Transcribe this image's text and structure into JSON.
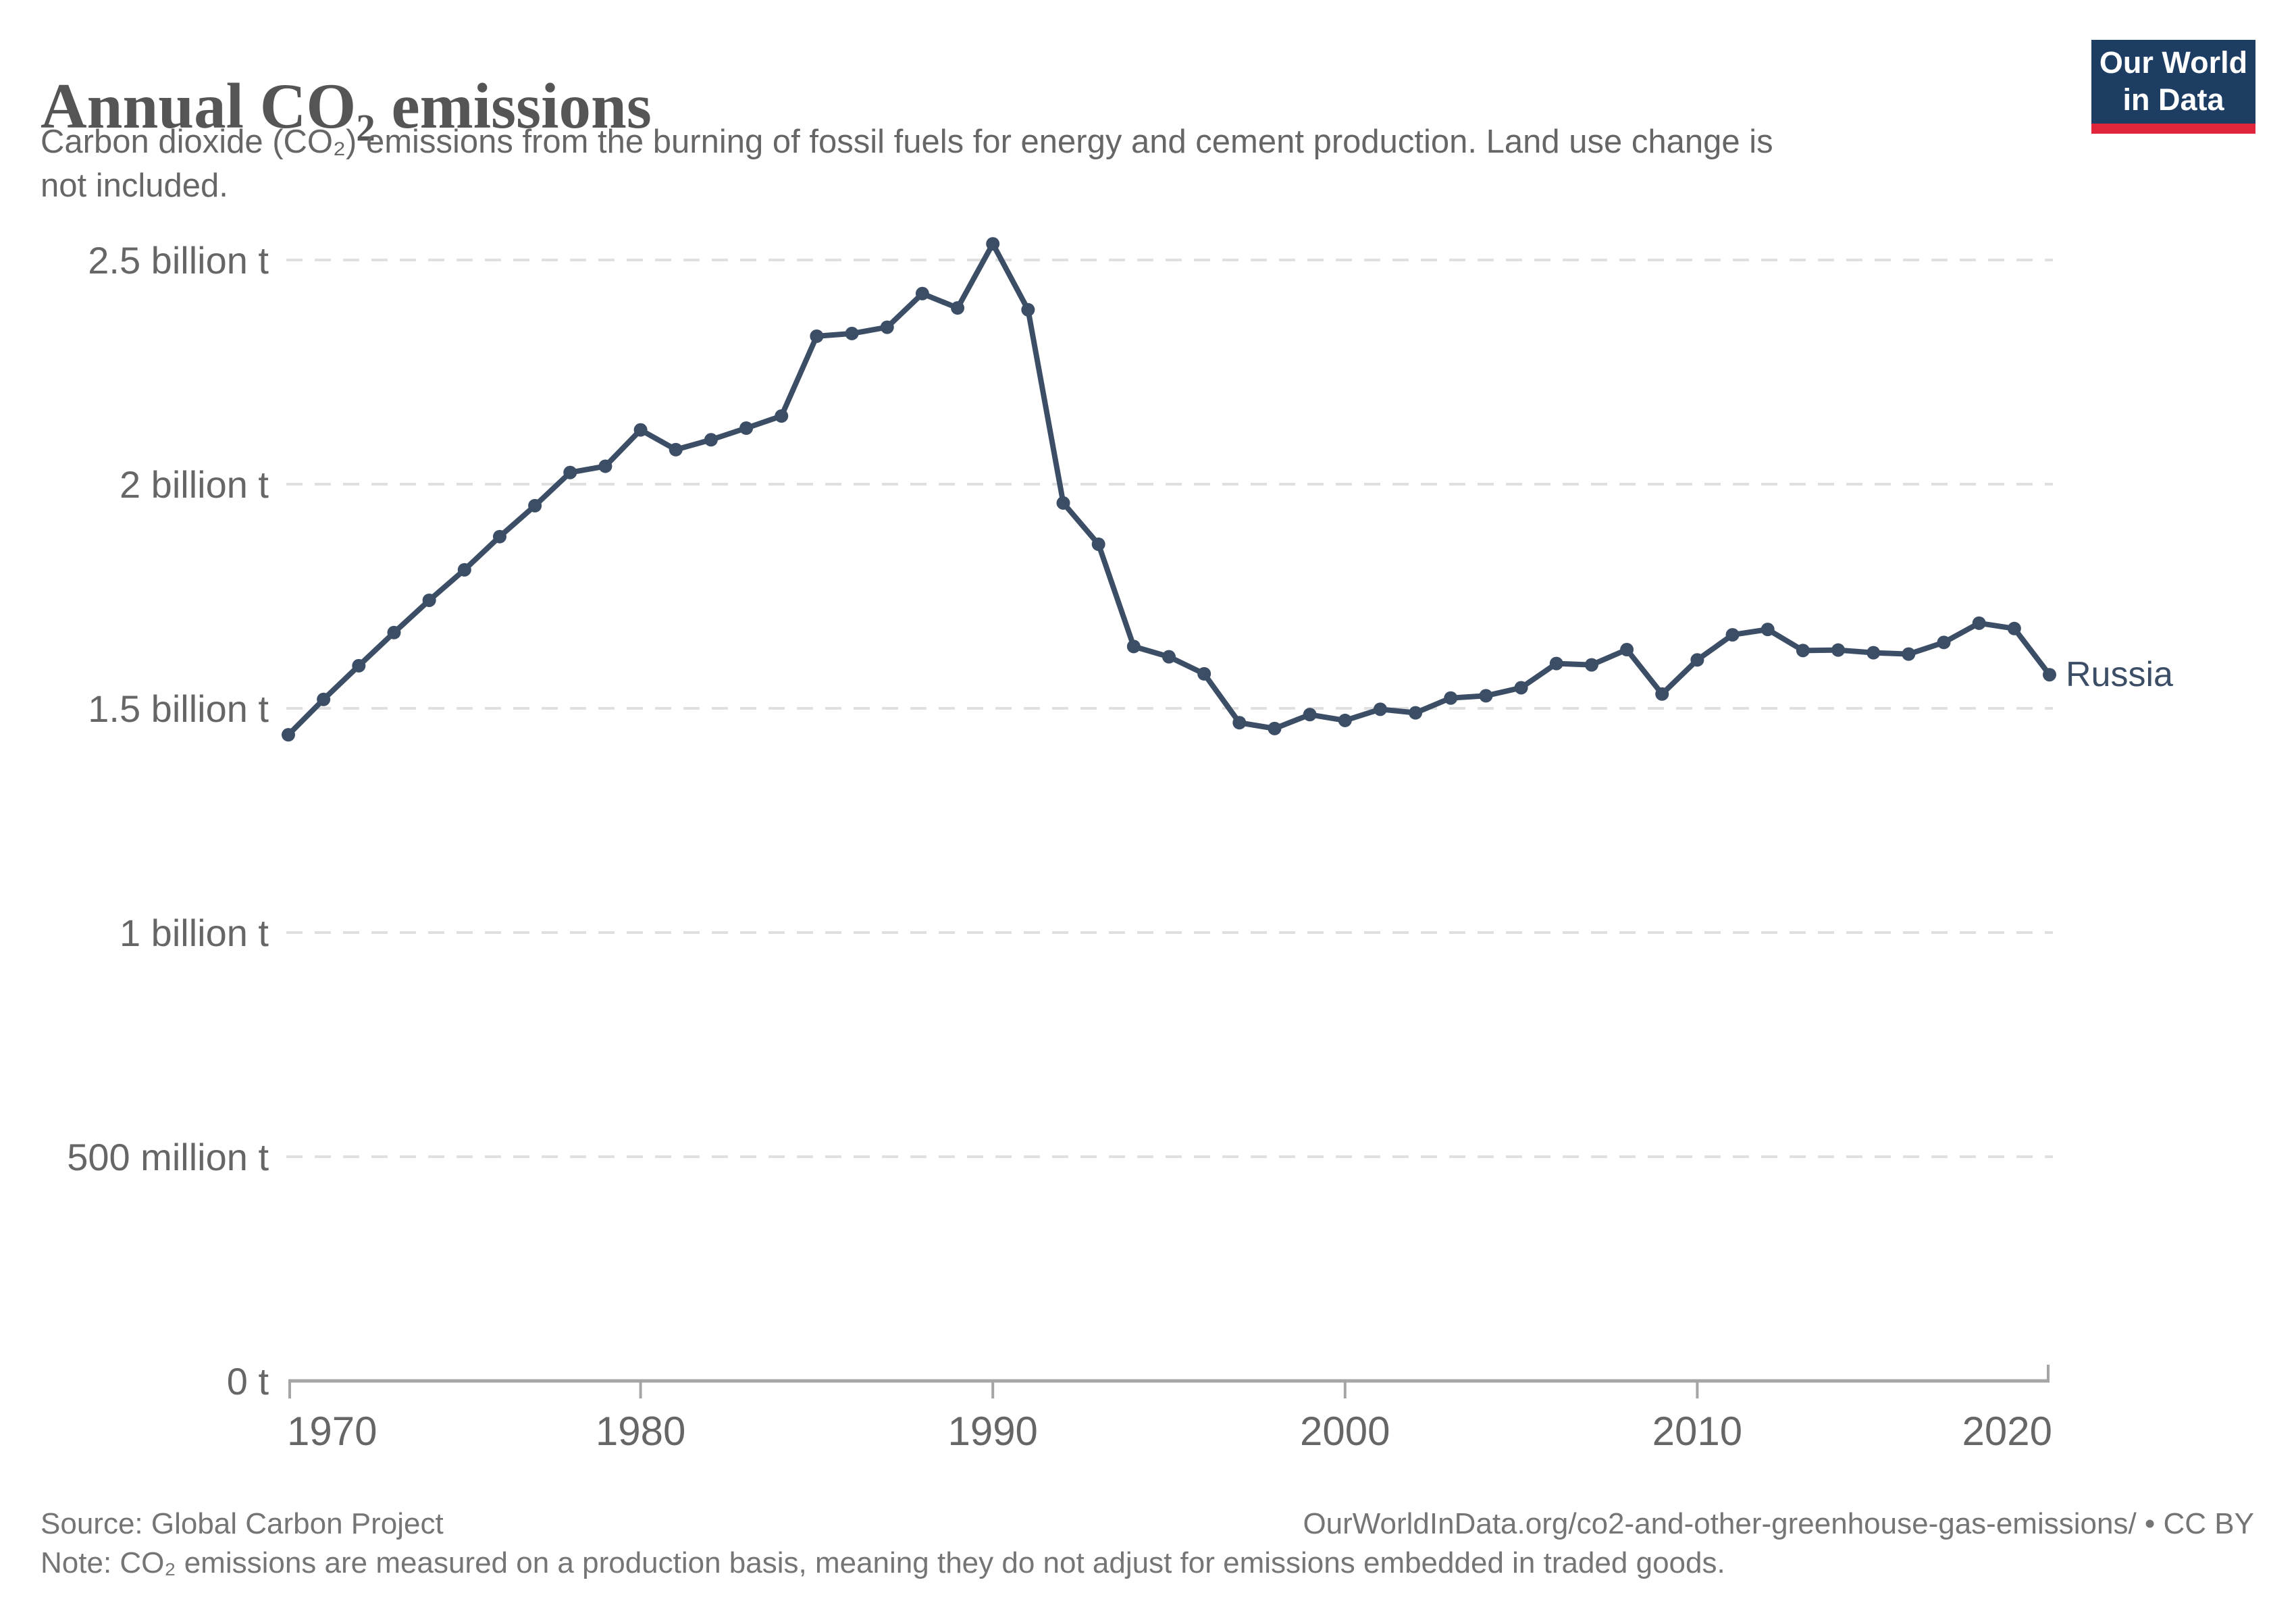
{
  "header": {
    "title": "Annual CO₂ emissions",
    "subtitle": "Carbon dioxide (CO₂) emissions from the burning of fossil fuels for energy and cement production. Land use change is not included."
  },
  "logo": {
    "line1": "Our World",
    "line2": "in Data",
    "bg_color": "#1d3d63",
    "bar_color": "#e0243c"
  },
  "chart_data": {
    "type": "line",
    "title": "Annual CO₂ emissions",
    "xlabel": "",
    "ylabel": "",
    "unit": "billion tonnes of CO₂",
    "grid": "dashed horizontal",
    "legend_position": "end-of-line label",
    "xlim": [
      1970,
      2020
    ],
    "ylim": [
      0,
      2.6
    ],
    "xticks": [
      1970,
      1980,
      1990,
      2000,
      2010,
      2020
    ],
    "yticks": [
      {
        "value": 0,
        "label": "0 t"
      },
      {
        "value": 0.5,
        "label": "500 million t"
      },
      {
        "value": 1,
        "label": "1 billion t"
      },
      {
        "value": 1.5,
        "label": "1.5 billion t"
      },
      {
        "value": 2,
        "label": "2 billion t"
      },
      {
        "value": 2.5,
        "label": "2.5 billion t"
      }
    ],
    "series": [
      {
        "name": "Russia",
        "color": "#3c4e66",
        "x": [
          1970,
          1971,
          1972,
          1973,
          1974,
          1975,
          1976,
          1977,
          1978,
          1979,
          1980,
          1981,
          1982,
          1983,
          1984,
          1985,
          1986,
          1987,
          1988,
          1989,
          1990,
          1991,
          1992,
          1993,
          1994,
          1995,
          1996,
          1997,
          1998,
          1999,
          2000,
          2001,
          2002,
          2003,
          2004,
          2005,
          2006,
          2007,
          2008,
          2009,
          2010,
          2011,
          2012,
          2013,
          2014,
          2015,
          2016,
          2017,
          2018,
          2019,
          2020
        ],
        "values": [
          1.441,
          1.52,
          1.595,
          1.669,
          1.741,
          1.809,
          1.883,
          1.952,
          2.026,
          2.04,
          2.121,
          2.077,
          2.099,
          2.125,
          2.152,
          2.33,
          2.336,
          2.35,
          2.425,
          2.393,
          2.536,
          2.389,
          1.958,
          1.866,
          1.638,
          1.615,
          1.577,
          1.468,
          1.455,
          1.486,
          1.473,
          1.498,
          1.49,
          1.523,
          1.528,
          1.546,
          1.6,
          1.597,
          1.631,
          1.532,
          1.608,
          1.664,
          1.676,
          1.629,
          1.63,
          1.624,
          1.621,
          1.647,
          1.69,
          1.678,
          1.575
        ]
      }
    ],
    "colors": {
      "line": "#3c4e66",
      "grid": "#e0e0e0",
      "axis": "#a5a5a5",
      "tick_text": "#666666"
    }
  },
  "footer": {
    "source": "Source: Global Carbon Project",
    "note": "Note: CO₂ emissions are measured on a production basis, meaning they do not adjust for emissions embedded in traded goods.",
    "link": "OurWorldInData.org/co2-and-other-greenhouse-gas-emissions/ • CC BY"
  }
}
